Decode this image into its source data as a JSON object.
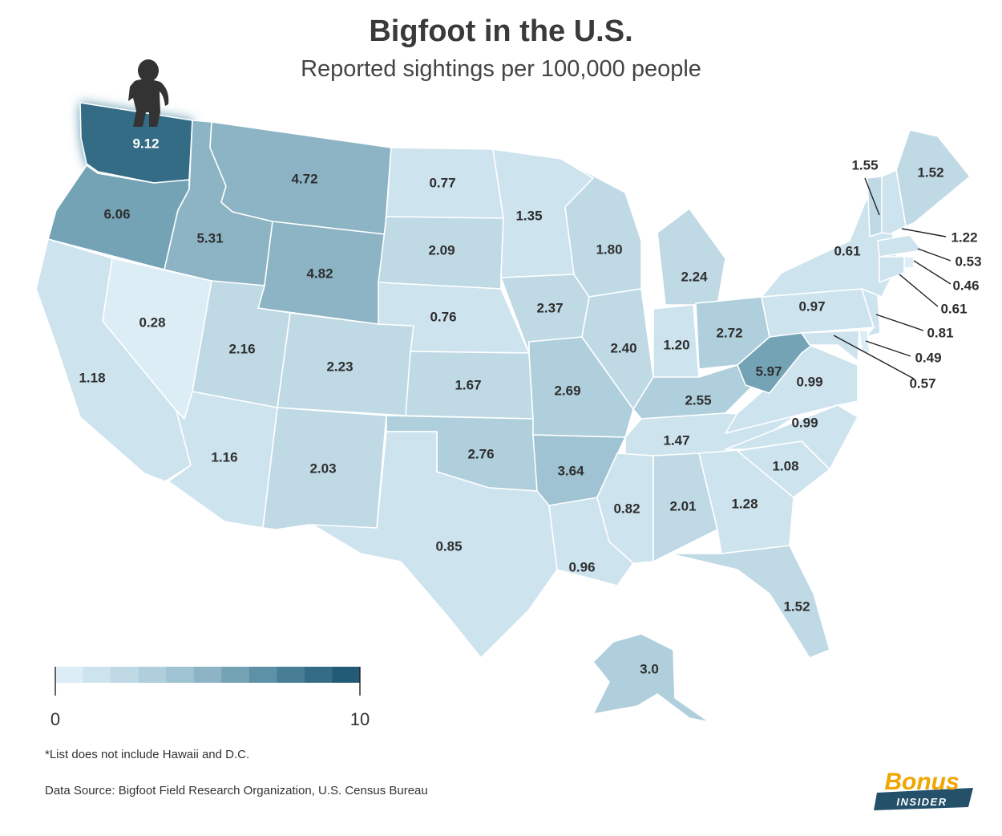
{
  "title": "Bigfoot in the U.S.",
  "subtitle": "Reported sightings per 100,000 people",
  "scale": {
    "min_label": "0",
    "max_label": "10",
    "min": 0,
    "max": 10
  },
  "colors": [
    "#dcedf6",
    "#cde3ee",
    "#bfd9e5",
    "#afcfdc",
    "#9fc3d2",
    "#8cb4c5",
    "#75a3b6",
    "#5d91a6",
    "#477e95",
    "#346c85",
    "#225b76"
  ],
  "footnote": "*List does not include Hawaii and D.C.",
  "source": "Data Source: Bigfoot Field Research Organization, U.S. Census Bureau",
  "logo": {
    "top": "Bonus",
    "bottom": "INSIDER"
  },
  "icon": "bigfoot-silhouette-icon",
  "states": [
    {
      "id": "WA",
      "value": "9.12"
    },
    {
      "id": "OR",
      "value": "6.06"
    },
    {
      "id": "CA",
      "value": "1.18"
    },
    {
      "id": "NV",
      "value": "0.28"
    },
    {
      "id": "ID",
      "value": "5.31"
    },
    {
      "id": "MT",
      "value": "4.72"
    },
    {
      "id": "WY",
      "value": "4.82"
    },
    {
      "id": "UT",
      "value": "2.16"
    },
    {
      "id": "CO",
      "value": "2.23"
    },
    {
      "id": "AZ",
      "value": "1.16"
    },
    {
      "id": "NM",
      "value": "2.03"
    },
    {
      "id": "ND",
      "value": "0.77"
    },
    {
      "id": "SD",
      "value": "2.09"
    },
    {
      "id": "NE",
      "value": "0.76"
    },
    {
      "id": "KS",
      "value": "1.67"
    },
    {
      "id": "OK",
      "value": "2.76"
    },
    {
      "id": "TX",
      "value": "0.85"
    },
    {
      "id": "MN",
      "value": "1.35"
    },
    {
      "id": "IA",
      "value": "2.37"
    },
    {
      "id": "MO",
      "value": "2.69"
    },
    {
      "id": "AR",
      "value": "3.64"
    },
    {
      "id": "LA",
      "value": "0.96"
    },
    {
      "id": "WI",
      "value": "1.80"
    },
    {
      "id": "IL",
      "value": "2.40"
    },
    {
      "id": "MI",
      "value": "2.24"
    },
    {
      "id": "IN",
      "value": "1.20"
    },
    {
      "id": "OH",
      "value": "2.72"
    },
    {
      "id": "KY",
      "value": "2.55"
    },
    {
      "id": "TN",
      "value": "1.47"
    },
    {
      "id": "MS",
      "value": "0.82"
    },
    {
      "id": "AL",
      "value": "2.01"
    },
    {
      "id": "GA",
      "value": "1.28"
    },
    {
      "id": "FL",
      "value": "1.52"
    },
    {
      "id": "SC",
      "value": "1.08"
    },
    {
      "id": "NC",
      "value": "0.99"
    },
    {
      "id": "VA",
      "value": "0.99"
    },
    {
      "id": "WV",
      "value": "5.97"
    },
    {
      "id": "PA",
      "value": "0.97"
    },
    {
      "id": "NY",
      "value": "0.61"
    },
    {
      "id": "VT",
      "value": "1.55"
    },
    {
      "id": "ME",
      "value": "1.52"
    },
    {
      "id": "NH",
      "value": "1.22"
    },
    {
      "id": "MA",
      "value": "0.53"
    },
    {
      "id": "RI",
      "value": "0.46"
    },
    {
      "id": "CT",
      "value": "0.61"
    },
    {
      "id": "NJ",
      "value": "0.81"
    },
    {
      "id": "DE",
      "value": "0.49"
    },
    {
      "id": "MD",
      "value": "0.57"
    },
    {
      "id": "AK",
      "value": "3.0"
    }
  ]
}
